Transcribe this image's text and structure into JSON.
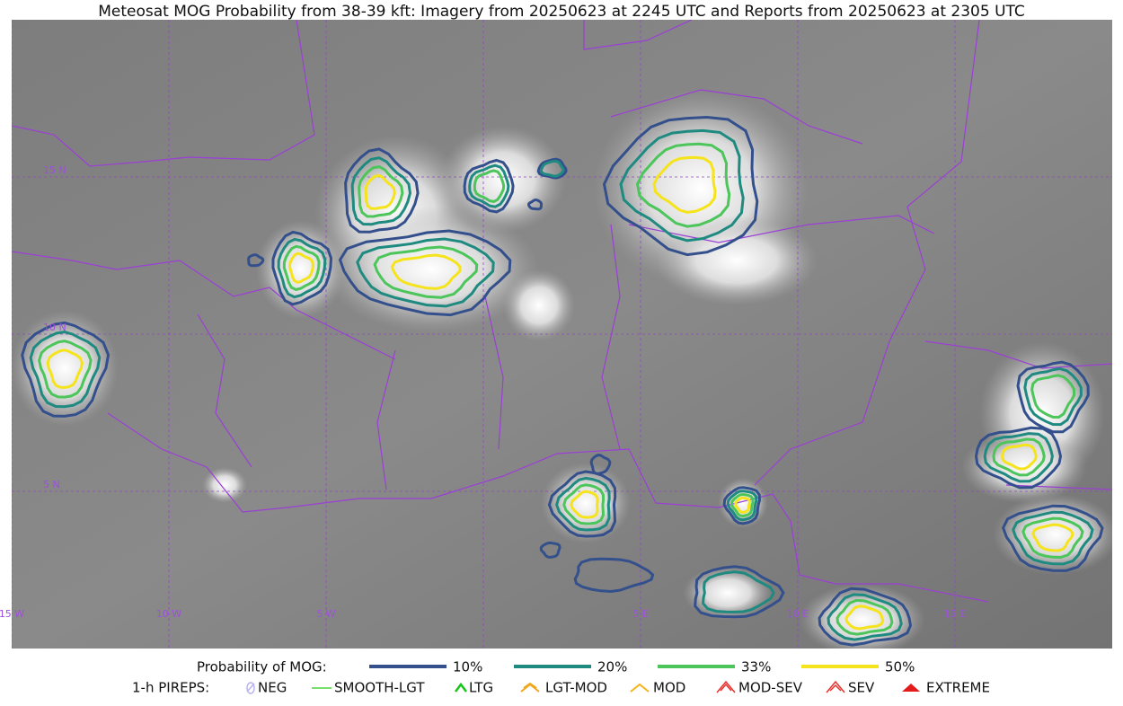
{
  "title": "Meteosat MOG Probability from 38-39 kft: Imagery from 20250623 at 2245 UTC and Reports from 20250623 at 2305 UTC",
  "latitude_labels": [
    "15 N",
    "10 N",
    "5 N"
  ],
  "longitude_labels": [
    "15 W",
    "10 W",
    "5 W",
    "5 E",
    "10 E",
    "15 E"
  ],
  "legend": {
    "label": "Probability of MOG:",
    "items": [
      {
        "label": "10%",
        "color": "#34508c"
      },
      {
        "label": "20%",
        "color": "#1f8a80"
      },
      {
        "label": "33%",
        "color": "#4cc55a"
      },
      {
        "label": "50%",
        "color": "#f5e31c"
      }
    ]
  },
  "pireps": {
    "label": "1-h PIREPS:",
    "items": [
      "NEG",
      "SMOOTH-LGT",
      "LTG",
      "LGT-MOD",
      "MOD",
      "MOD-SEV",
      "SEV",
      "EXTREME"
    ]
  }
}
